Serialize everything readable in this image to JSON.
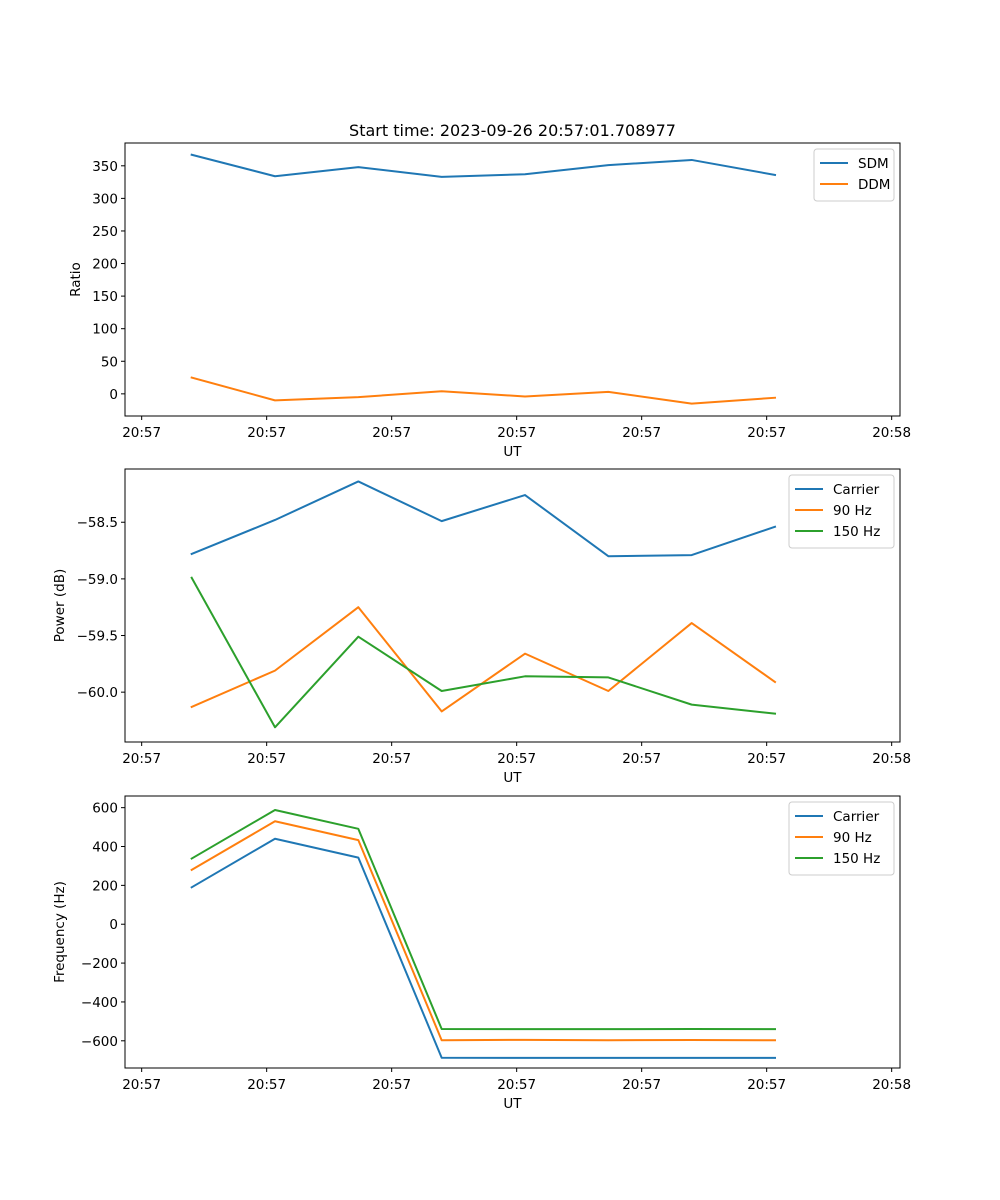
{
  "chart_data": [
    {
      "type": "line",
      "title": "Start time: 2023-09-26 20:57:01.708977",
      "xlabel": "UT",
      "ylabel": "Ratio",
      "x": [
        1,
        2,
        3,
        4,
        5,
        6,
        7,
        8
      ],
      "xlim": [
        0.2,
        9.5
      ],
      "ylim": [
        -34,
        385
      ],
      "yticks": [
        0,
        50,
        100,
        150,
        200,
        250,
        300,
        350
      ],
      "ytick_labels": [
        "0",
        "50",
        "100",
        "150",
        "200",
        "250",
        "300",
        "350"
      ],
      "xticks": [
        0.4,
        1.9,
        3.4,
        4.9,
        6.4,
        7.9,
        9.4
      ],
      "xtick_labels": [
        "20:57",
        "20:57",
        "20:57",
        "20:57",
        "20:57",
        "20:57",
        "20:58"
      ],
      "legend_position": "top-right",
      "series": [
        {
          "name": "SDM",
          "color": "#1f77b4",
          "values": [
            367,
            334,
            348,
            333,
            337,
            351,
            359,
            336
          ]
        },
        {
          "name": "DDM",
          "color": "#ff7f0e",
          "values": [
            25,
            -10,
            -5,
            4,
            -4,
            3,
            -15,
            -6
          ]
        }
      ]
    },
    {
      "type": "line",
      "title": "",
      "xlabel": "UT",
      "ylabel": "Power (dB)",
      "x": [
        1,
        2,
        3,
        4,
        5,
        6,
        7,
        8
      ],
      "xlim": [
        0.2,
        9.5
      ],
      "ylim": [
        -60.44,
        -58.03
      ],
      "yticks": [
        -60.0,
        -59.5,
        -59.0,
        -58.5
      ],
      "ytick_labels": [
        "−60.0",
        "−59.5",
        "−59.0",
        "−58.5"
      ],
      "xticks": [
        0.4,
        1.9,
        3.4,
        4.9,
        6.4,
        7.9,
        9.4
      ],
      "xtick_labels": [
        "20:57",
        "20:57",
        "20:57",
        "20:57",
        "20:57",
        "20:57",
        "20:58"
      ],
      "legend_position": "top-right",
      "series": [
        {
          "name": "Carrier",
          "color": "#1f77b4",
          "values": [
            -58.78,
            -58.48,
            -58.14,
            -58.49,
            -58.26,
            -58.8,
            -58.79,
            -58.54
          ]
        },
        {
          "name": "90 Hz",
          "color": "#ff7f0e",
          "values": [
            -60.13,
            -59.81,
            -59.25,
            -60.17,
            -59.66,
            -59.99,
            -59.39,
            -59.91
          ]
        },
        {
          "name": "150 Hz",
          "color": "#2ca02c",
          "values": [
            -58.99,
            -60.31,
            -59.51,
            -59.99,
            -59.86,
            -59.87,
            -60.11,
            -60.19
          ]
        }
      ]
    },
    {
      "type": "line",
      "title": "",
      "xlabel": "UT",
      "ylabel": "Frequency (Hz)",
      "x": [
        1,
        2,
        3,
        4,
        5,
        6,
        7,
        8
      ],
      "xlim": [
        0.2,
        9.5
      ],
      "ylim": [
        -740,
        660
      ],
      "yticks": [
        -600,
        -400,
        -200,
        0,
        200,
        400,
        600
      ],
      "ytick_labels": [
        "−600",
        "−400",
        "−200",
        "0",
        "200",
        "400",
        "600"
      ],
      "xticks": [
        0.4,
        1.9,
        3.4,
        4.9,
        6.4,
        7.9,
        9.4
      ],
      "xtick_labels": [
        "20:57",
        "20:57",
        "20:57",
        "20:57",
        "20:57",
        "20:57",
        "20:58"
      ],
      "legend_position": "top-right",
      "series": [
        {
          "name": "Carrier",
          "color": "#1f77b4",
          "values": [
            190,
            440,
            343,
            -687,
            -688,
            -688,
            -688,
            -688
          ]
        },
        {
          "name": "90 Hz",
          "color": "#ff7f0e",
          "values": [
            280,
            530,
            433,
            -597,
            -595,
            -597,
            -596,
            -597
          ]
        },
        {
          "name": "150 Hz",
          "color": "#2ca02c",
          "values": [
            338,
            588,
            491,
            -539,
            -540,
            -540,
            -539,
            -540
          ]
        }
      ]
    }
  ]
}
